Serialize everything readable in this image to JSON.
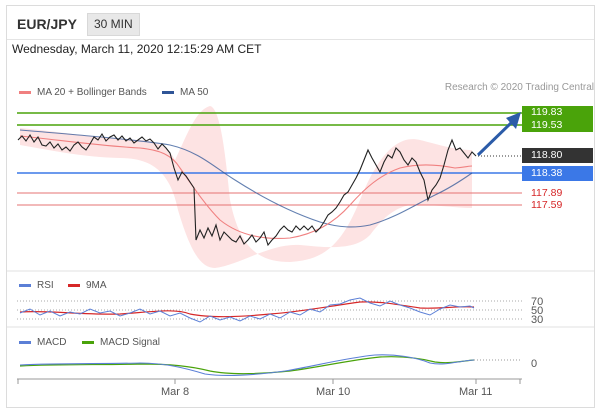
{
  "header": {
    "symbol": "EUR/JPY",
    "timeframe": "30 MIN"
  },
  "datetime": "Wednesday, March 11, 2020 12:15:29 AM CET",
  "main_legend": {
    "ma20": "MA 20 + Bollinger Bands",
    "ma50": "MA 50",
    "research": "Research © 2020 Trading Central"
  },
  "levels": {
    "resistance_1": "119.83",
    "resistance_2": "119.53",
    "current": "118.80",
    "pivot": "118.38",
    "support_1": "117.89",
    "support_2": "117.59"
  },
  "rsi_legend": {
    "rsi": "RSI",
    "ma9": "9MA"
  },
  "rsi_axis": {
    "upper": "70",
    "middle": "50",
    "lower": "30"
  },
  "macd_legend": {
    "macd": "MACD",
    "signal": "MACD Signal"
  },
  "macd_axis": {
    "zero": "0"
  },
  "x_axis": {
    "labels": [
      "Mar 8",
      "Mar 10",
      "Mar 11"
    ]
  },
  "colors": {
    "resistance": "#4aa30a",
    "pivot": "#3b78e7",
    "support": "#d62728",
    "current": "#333333",
    "ma20": "#f08080",
    "ma50": "#2f5597",
    "rsi": "#5b7fd6",
    "ma9": "#d62728",
    "macd": "#5b7fd6",
    "macd_signal": "#4aa30a"
  }
}
